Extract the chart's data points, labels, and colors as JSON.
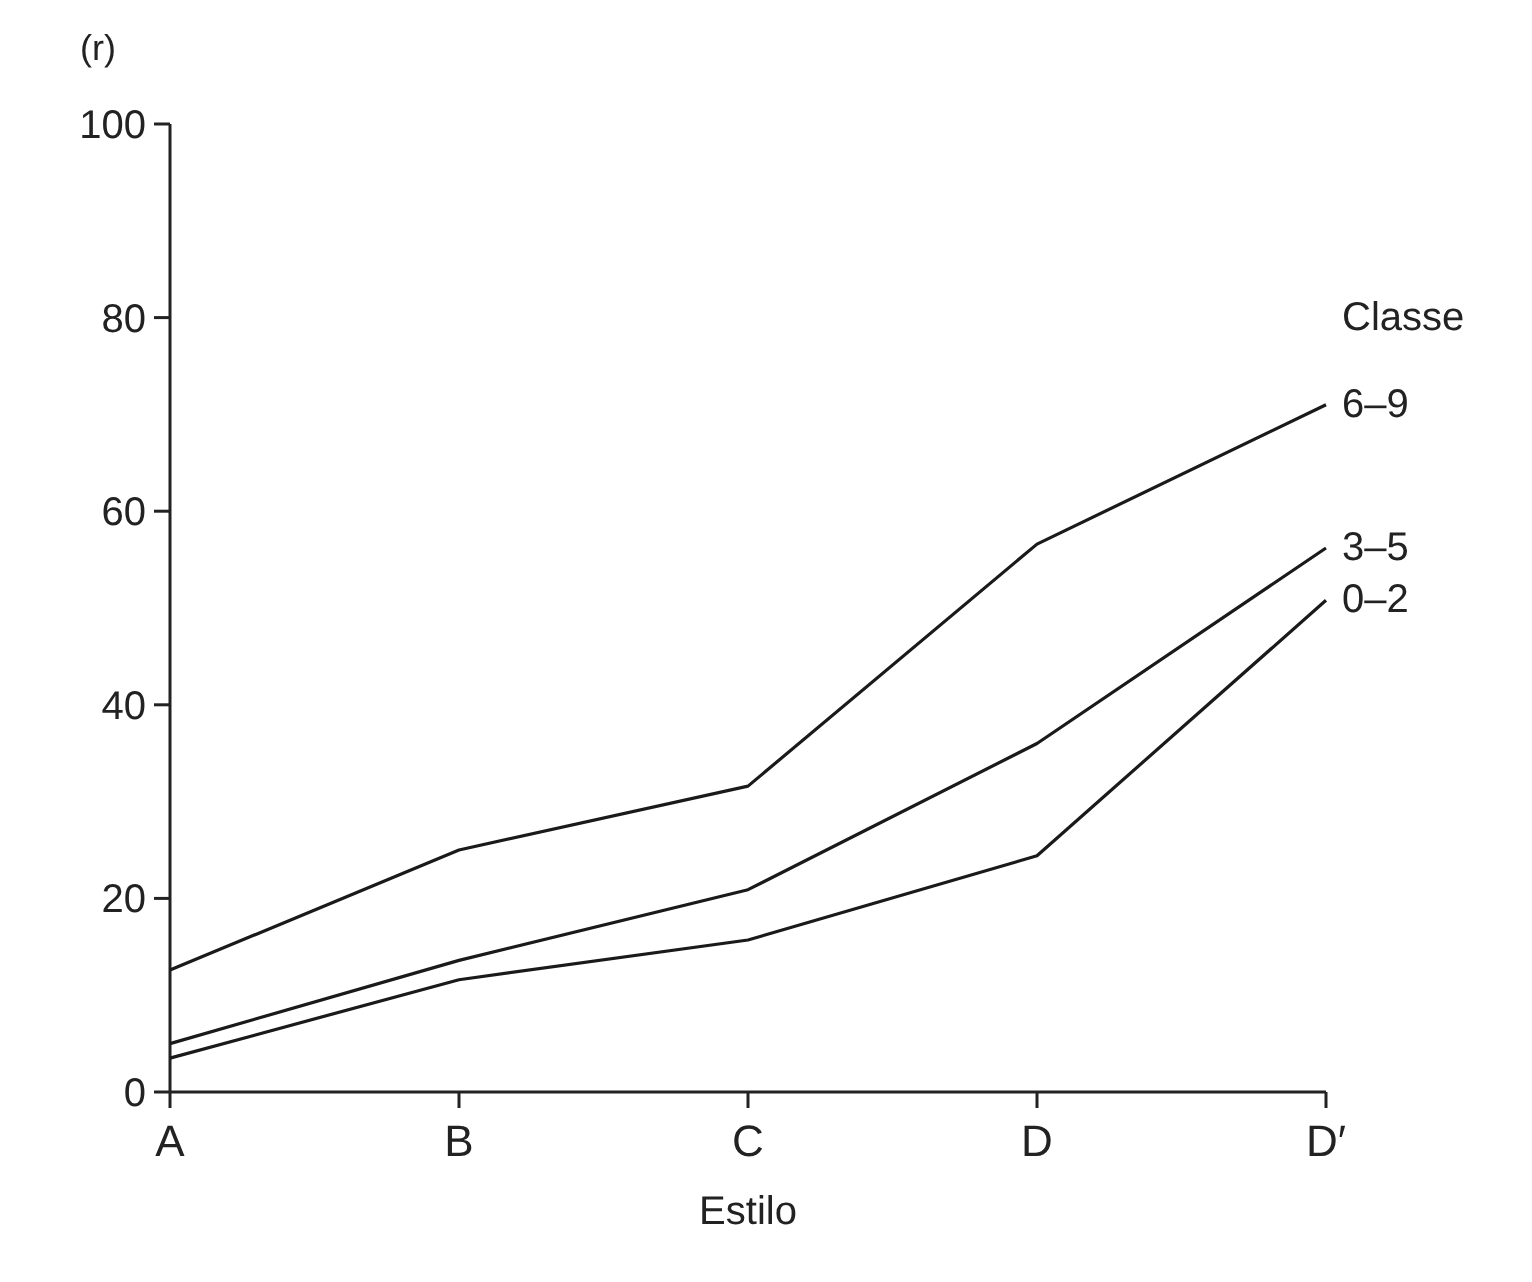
{
  "chart_data": {
    "type": "line",
    "ylabel": "(r)",
    "xlabel": "Estilo",
    "legend_title": "Classe",
    "categories": [
      "A",
      "B",
      "C",
      "D",
      "D′"
    ],
    "ylim": [
      0,
      100
    ],
    "yticks": [
      0,
      20,
      40,
      60,
      80,
      100
    ],
    "grid": false,
    "marker": "none",
    "line_style": "solid",
    "series": [
      {
        "name": "6–9",
        "color": "#1a1a1a",
        "values": [
          12.6,
          25,
          31.6,
          56.6,
          71
        ]
      },
      {
        "name": "3–5",
        "color": "#1a1a1a",
        "values": [
          5,
          13.6,
          20.9,
          36,
          56.2
        ]
      },
      {
        "name": "0–2",
        "color": "#1a1a1a",
        "values": [
          3.5,
          11.6,
          15.7,
          24.4,
          50.8
        ]
      }
    ]
  }
}
